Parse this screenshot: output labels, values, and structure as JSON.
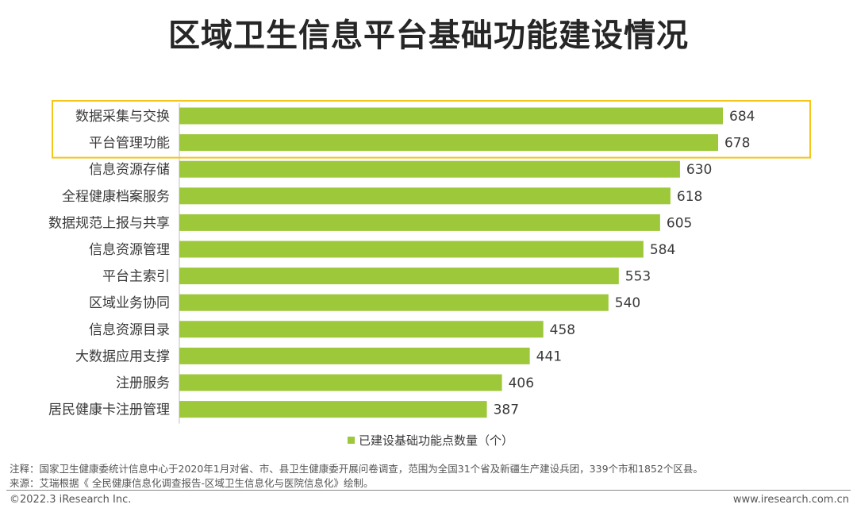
{
  "page": {
    "title": "区域卫生信息平台基础功能建设情况",
    "note": "注释：国家卫生健康委统计信息中心于2020年1月对省、市、县卫生健康委开展问卷调查，范围为全国31个省及新疆生产建设兵团，339个市和1852个区县。",
    "source": "来源：艾瑞根据《 全民健康信息化调查报告-区域卫生信息化与医院信息化》绘制。",
    "copyright": "©2022.3 iResearch Inc.",
    "website": "www.iresearch.com.cn"
  },
  "colors": {
    "bar": "#9cc83a",
    "highlight_box": "#f5c518",
    "axis": "#bfbfbf"
  },
  "chart_data": {
    "type": "bar",
    "orientation": "horizontal",
    "title": "区域卫生信息平台基础功能建设情况",
    "categories": [
      "数据采集与交换",
      "平台管理功能",
      "信息资源存储",
      "全程健康档案服务",
      "数据规范上报与共享",
      "信息资源管理",
      "平台主索引",
      "区域业务协同",
      "信息资源目录",
      "大数据应用支撑",
      "注册服务",
      "居民健康卡注册管理"
    ],
    "series": [
      {
        "name": "已建设基础功能点数量（个）",
        "values": [
          684,
          678,
          630,
          618,
          605,
          584,
          553,
          540,
          458,
          441,
          406,
          387
        ]
      }
    ],
    "highlighted_categories": [
      "数据采集与交换",
      "平台管理功能"
    ],
    "xlim": [
      0,
      684
    ],
    "grid": false,
    "legend_position": "bottom"
  }
}
